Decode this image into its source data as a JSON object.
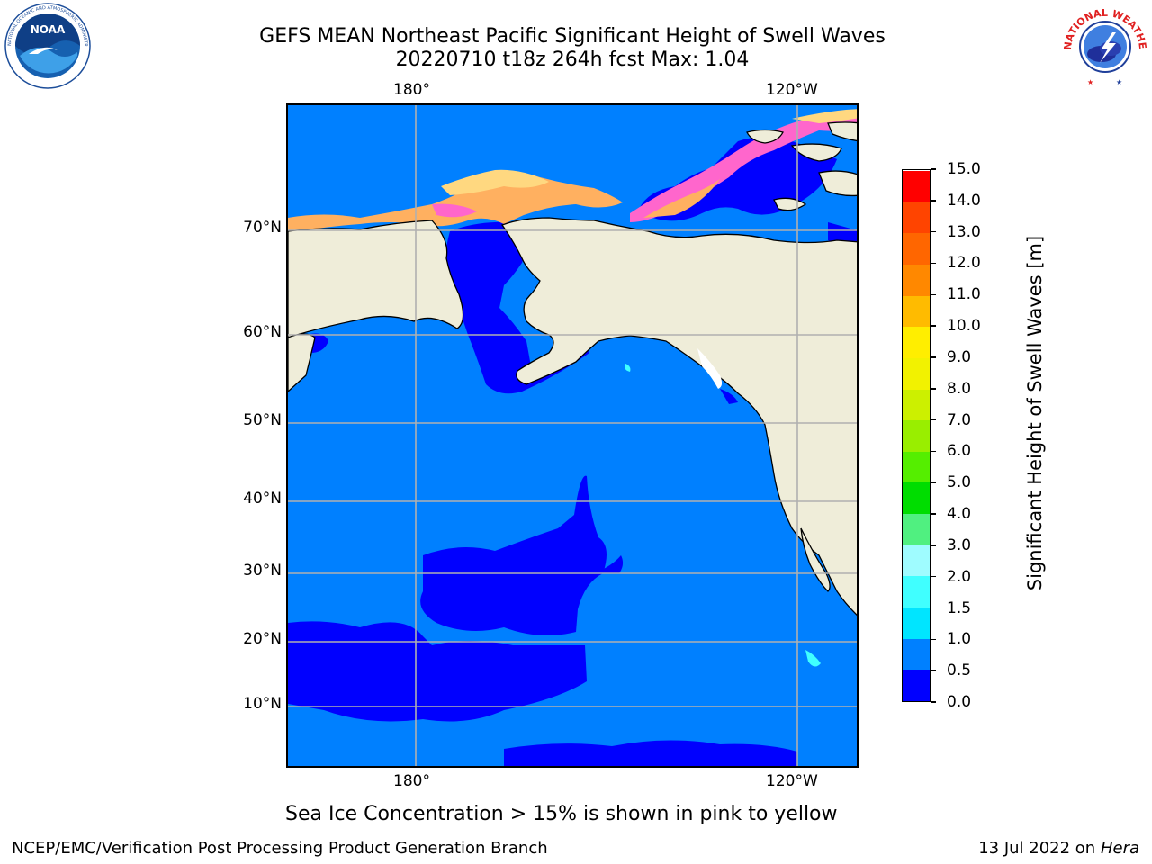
{
  "header": {
    "title_line1": "GEFS MEAN Northeast Pacific Significant Height of Swell Waves",
    "title_line2": "20220710 t18z 264h fcst   Max: 1.04"
  },
  "logos": {
    "left": {
      "icon": "noaa-logo-icon",
      "text": "NOAA",
      "ring_text": "NATIONAL OCEANIC AND ATMOSPHERIC ADMINISTRATION · U.S. DEPARTMENT OF COMMERCE"
    },
    "right": {
      "icon": "nws-logo-icon",
      "ring_text": "NATIONAL WEATHER SERVICE"
    }
  },
  "map": {
    "lon_labels_top": [
      "180°",
      "120°W"
    ],
    "lon_labels_bottom": [
      "180°",
      "120°W"
    ],
    "lat_labels": [
      "70°N",
      "60°N",
      "50°N",
      "40°N",
      "30°N",
      "20°N",
      "10°N"
    ],
    "colors": {
      "land": "#efedd9",
      "ocean_0_5_1_0": "#0080ff",
      "ocean_0_0_5": "#0000ff",
      "ice_pink": "#ff66cc",
      "ice_orange": "#ffb060",
      "ice_yellow": "#ffd880",
      "grid": "#b0b0b0",
      "coast": "#000000"
    }
  },
  "colorbar": {
    "label": "Significant Height of Swell Waves [m]",
    "ticks": [
      "0.0",
      "0.5",
      "1.0",
      "1.5",
      "2.0",
      "3.0",
      "4.0",
      "5.0",
      "6.0",
      "7.0",
      "8.0",
      "9.0",
      "10.0",
      "11.0",
      "12.0",
      "13.0",
      "14.0",
      "15.0"
    ],
    "colors": [
      "#0000ff",
      "#0080ff",
      "#00e5ff",
      "#40ffff",
      "#9ffcff",
      "#50f080",
      "#00dd00",
      "#55ee00",
      "#99ee00",
      "#ccf000",
      "#f2f200",
      "#ffee00",
      "#ffbb00",
      "#ff8800",
      "#ff6600",
      "#ff4400",
      "#ff0000"
    ]
  },
  "note": "Sea Ice Concentration > 15% is shown in pink to yellow",
  "footer": {
    "left": "NCEP/EMC/Verification Post Processing Product Generation Branch",
    "date": "13 Jul 2022 on ",
    "host": "Hera"
  }
}
